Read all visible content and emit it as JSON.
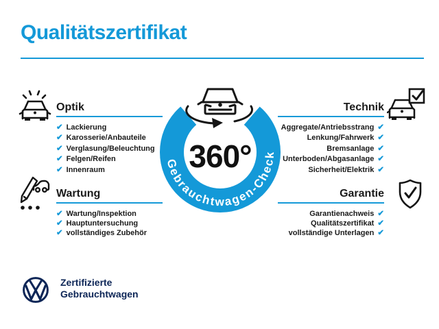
{
  "title": "Qualitätszertifikat",
  "colors": {
    "accent": "#1499D8",
    "ink": "#1A1A1A",
    "navy": "#0C2556"
  },
  "badge": {
    "degrees": "360°",
    "ring_label": "Gebrauchtwagen-Check"
  },
  "checkmark": "✔",
  "sections": [
    {
      "heading": "Optik",
      "items": [
        "Lackierung",
        "Karosserie/Anbauteile",
        "Verglasung/Beleuchtung",
        "Felgen/Reifen",
        "Innenraum"
      ]
    },
    {
      "heading": "Technik",
      "items": [
        "Aggregate/Antriebsstrang",
        "Lenkung/Fahrwerk",
        "Bremsanlage",
        "Unterboden/Abgasanlage",
        "Sicherheit/Elektrik"
      ]
    },
    {
      "heading": "Wartung",
      "items": [
        "Wartung/Inspektion",
        "Hauptuntersuchung",
        "vollständiges Zubehör"
      ]
    },
    {
      "heading": "Garantie",
      "items": [
        "Garantienachweis",
        "Qualitätszertifikat",
        "vollständige Unterlagen"
      ]
    }
  ],
  "footer": {
    "brand_line1": "Zertifizierte",
    "brand_line2": "Gebrauchtwagen"
  }
}
